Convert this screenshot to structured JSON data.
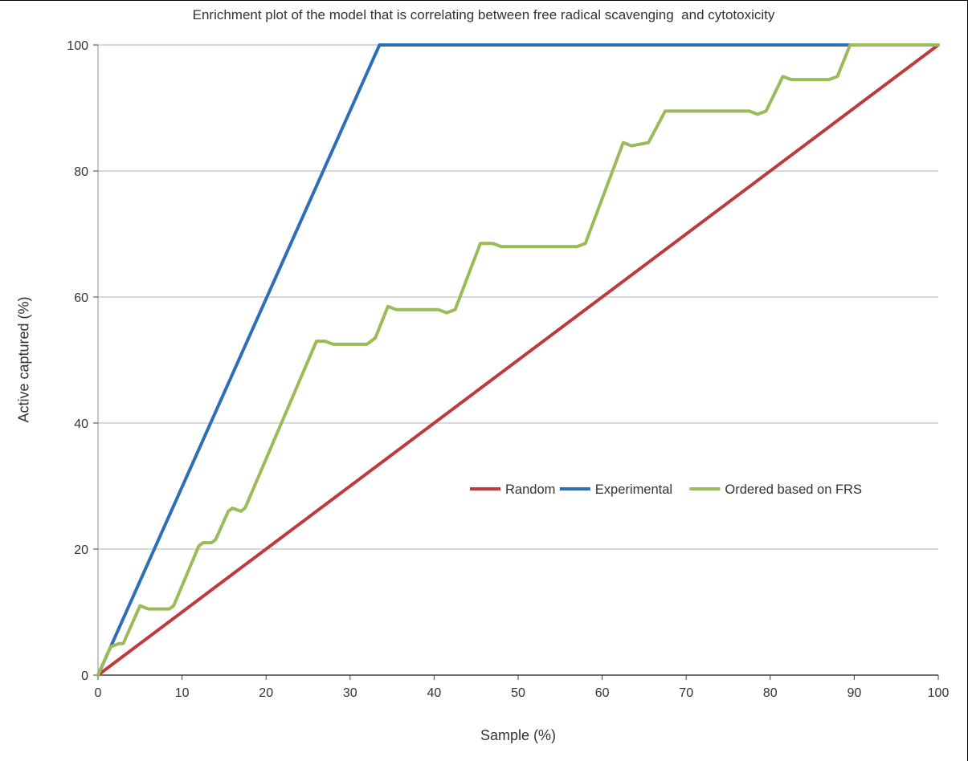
{
  "chart_data": {
    "type": "line",
    "title": "Enrichment plot of the model that is correlating between free radical scavenging  and cytotoxicity",
    "xlabel": "Sample (%)",
    "ylabel": "Active captured (%)",
    "xlim": [
      0,
      100
    ],
    "ylim": [
      0,
      100
    ],
    "xticks": [
      0,
      10,
      20,
      30,
      40,
      50,
      60,
      70,
      80,
      90,
      100
    ],
    "yticks": [
      0,
      20,
      40,
      60,
      80,
      100
    ],
    "grid": "horizontal",
    "legend_position": "inside center-right",
    "colors": {
      "axis": "#404040",
      "gridline": "#b3b3b3",
      "text": "#333333"
    },
    "series": [
      {
        "name": "Random",
        "color": "#bf3b3b",
        "points": [
          [
            0,
            0
          ],
          [
            100,
            100
          ]
        ]
      },
      {
        "name": "Experimental",
        "color": "#2c6fb7",
        "points": [
          [
            0,
            0
          ],
          [
            33.5,
            100
          ],
          [
            100,
            100
          ]
        ]
      },
      {
        "name": "Ordered based on FRS",
        "color": "#9bbb59",
        "points": [
          [
            0,
            0
          ],
          [
            1.5,
            4.5
          ],
          [
            2.5,
            5
          ],
          [
            3,
            5
          ],
          [
            5,
            11
          ],
          [
            6,
            10.5
          ],
          [
            8.5,
            10.5
          ],
          [
            9,
            11
          ],
          [
            12,
            20.5
          ],
          [
            12.5,
            21
          ],
          [
            13.5,
            21
          ],
          [
            14,
            21.5
          ],
          [
            15.5,
            26
          ],
          [
            16,
            26.5
          ],
          [
            17,
            26
          ],
          [
            17.5,
            26.5
          ],
          [
            26,
            53
          ],
          [
            27,
            53
          ],
          [
            28,
            52.5
          ],
          [
            32,
            52.5
          ],
          [
            33,
            53.5
          ],
          [
            34.5,
            58.5
          ],
          [
            35.5,
            58
          ],
          [
            40.5,
            58
          ],
          [
            41.5,
            57.5
          ],
          [
            42.5,
            58
          ],
          [
            45.5,
            68.5
          ],
          [
            47,
            68.5
          ],
          [
            48,
            68
          ],
          [
            57,
            68
          ],
          [
            58,
            68.5
          ],
          [
            62.5,
            84.5
          ],
          [
            63.5,
            84
          ],
          [
            65.5,
            84.5
          ],
          [
            67.5,
            89.5
          ],
          [
            77.5,
            89.5
          ],
          [
            78.5,
            89
          ],
          [
            79.5,
            89.5
          ],
          [
            81.5,
            95
          ],
          [
            82.5,
            94.5
          ],
          [
            87,
            94.5
          ],
          [
            88,
            95
          ],
          [
            89.5,
            100
          ],
          [
            100,
            100
          ]
        ]
      }
    ]
  }
}
